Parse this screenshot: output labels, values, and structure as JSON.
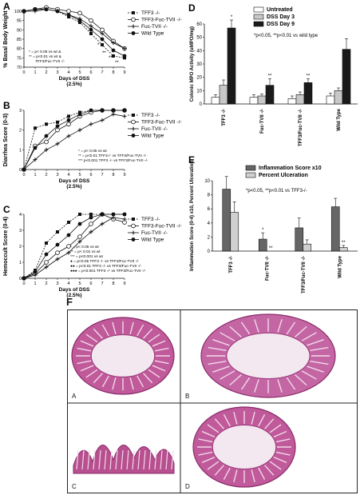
{
  "chart_data": [
    {
      "panel_label": "A",
      "type": "line",
      "xlabel": "Days of DSS",
      "xlabel2": "(2.5%)",
      "ylabel": "% Basal Body Weight",
      "x": [
        0,
        1,
        2,
        3,
        4,
        5,
        6,
        7,
        8,
        9
      ],
      "xlim": [
        0,
        9
      ],
      "ylim": [
        70,
        100
      ],
      "yticks": [
        70,
        75,
        80,
        85,
        90,
        95,
        100
      ],
      "series": [
        {
          "name": "TFF3 -/-",
          "style": "dashed",
          "marker": "square-filled",
          "values": [
            100,
            101,
            101,
            100,
            97,
            94,
            88,
            82,
            76,
            75
          ]
        },
        {
          "name": "TFF3-Fuc-TVII -/-",
          "style": "solid",
          "marker": "circle-open",
          "values": [
            100,
            101,
            102,
            101,
            100,
            99,
            95,
            90,
            84,
            80
          ]
        },
        {
          "name": "Fuc-TVII -/-",
          "style": "solid",
          "marker": "plus",
          "values": [
            100,
            100,
            101,
            100,
            98,
            96,
            92,
            88,
            83,
            80
          ]
        },
        {
          "name": "Wild Type",
          "style": "solid",
          "marker": "circle-filled",
          "values": [
            100,
            101,
            101,
            100,
            98,
            95,
            90,
            85,
            79,
            76
          ]
        }
      ],
      "annotations": [
        "* = p< 0.05 vs wt &",
        "** = p<0.01 vs wt &",
        "TFF3/Fuc-TVII -/-",
        "*",
        "**",
        "**",
        "**"
      ]
    },
    {
      "panel_label": "B",
      "type": "line",
      "xlabel": "Days of DSS",
      "xlabel2": "(2.5%)",
      "ylabel": "Diarrhea Score (0-3)",
      "x": [
        0,
        1,
        2,
        3,
        4,
        5,
        6,
        7,
        8,
        9
      ],
      "xlim": [
        0,
        9
      ],
      "ylim": [
        0,
        3
      ],
      "yticks": [
        0,
        1,
        2,
        3
      ],
      "series": [
        {
          "name": "TFF3 -/-",
          "style": "dashed",
          "marker": "square-filled",
          "values": [
            0,
            2.1,
            2.3,
            2.4,
            2.7,
            2.9,
            3,
            3,
            3,
            3
          ]
        },
        {
          "name": "TFF3-Fuc-TVII -/-",
          "style": "solid",
          "marker": "circle-open",
          "values": [
            0,
            1.2,
            1.4,
            2.0,
            2.3,
            2.7,
            2.9,
            3,
            3,
            3
          ]
        },
        {
          "name": "Fuc-TVII -/-",
          "style": "solid",
          "marker": "plus",
          "values": [
            0,
            0.5,
            1.0,
            1.3,
            1.7,
            2.0,
            2.3,
            2.5,
            2.8,
            2.7
          ]
        },
        {
          "name": "Wild Type",
          "style": "solid",
          "marker": "circle-filled",
          "values": [
            0,
            1.1,
            1.7,
            2.2,
            2.5,
            2.8,
            3,
            3,
            3,
            3
          ]
        }
      ],
      "annotations": [
        "* = p< 0.05 vs wt",
        "** = p<0.01 TFF3-/- vs TFF3/Fuc-TVII -/-",
        "*** p<0.001 TFF3 -/- vs TFF3/Fuc-TVII -/-"
      ]
    },
    {
      "panel_label": "C",
      "type": "line",
      "xlabel": "Days of DSS",
      "xlabel2": "(2.5%)",
      "ylabel": "Hemoccult Score (0-4)",
      "x": [
        0,
        1,
        2,
        3,
        4,
        5,
        6,
        7,
        8,
        9
      ],
      "xlim": [
        0,
        9
      ],
      "ylim": [
        0,
        4
      ],
      "yticks": [
        0,
        1,
        2,
        3,
        4
      ],
      "series": [
        {
          "name": "TFF3 -/-",
          "style": "dashed",
          "marker": "square-filled",
          "values": [
            0,
            0.5,
            2.2,
            2.9,
            3.5,
            4,
            4,
            4,
            4,
            4
          ]
        },
        {
          "name": "TFF3-Fuc-TVII -/-",
          "style": "solid",
          "marker": "circle-open",
          "values": [
            0,
            0.3,
            1.0,
            1.6,
            2.0,
            2.6,
            3.4,
            4,
            3.7,
            3.5
          ]
        },
        {
          "name": "Fuc-TVII -/-",
          "style": "solid",
          "marker": "plus",
          "values": [
            0,
            0.2,
            0.7,
            1.2,
            1.6,
            2.3,
            2.9,
            3.4,
            3.8,
            3.7
          ]
        },
        {
          "name": "Wild Type",
          "style": "solid",
          "marker": "circle-filled",
          "values": [
            0,
            0.4,
            1.5,
            2.1,
            2.7,
            3.4,
            3.8,
            4,
            4,
            4
          ]
        }
      ],
      "annotations": [
        "* = p< 0.05 vs wt",
        "** = p< 0.01 vs wt",
        "*** = p<0.001 vs wt",
        "● = p<0.05 TFF3 -/- vs TFF3/Fuc-TVII -/-",
        "●● = p<0.01 TFF3 -/- vs TFF3/Fuc-TVII -/-",
        "●●● = p<0.001 TFF3 -/- vs TFF3/Fuc-TVII -/-"
      ]
    },
    {
      "panel_label": "D",
      "type": "bar",
      "ylabel": "Colonic MPO Activity (uMPO/mg)",
      "ylim": [
        0,
        60
      ],
      "yticks": [
        0,
        10,
        20,
        30,
        40,
        50,
        60
      ],
      "categories": [
        "TFF3 -/-",
        "Fuc-TVII -/-",
        "TFF3/Fuc-TVII -/-",
        "Wild Type"
      ],
      "series": [
        {
          "name": "Untreated",
          "color": "#ffffff",
          "values": [
            5,
            5,
            4,
            6
          ],
          "errors": [
            2,
            2,
            2,
            2
          ]
        },
        {
          "name": "DSS Day 3",
          "color": "#c8c8c8",
          "values": [
            14,
            6,
            7,
            10
          ],
          "errors": [
            4,
            1.5,
            2,
            2
          ]
        },
        {
          "name": "DSS Day 9",
          "color": "#1a1a1a",
          "values": [
            57,
            14,
            16,
            41
          ],
          "errors": [
            6,
            5,
            3,
            8
          ]
        }
      ],
      "significance": [
        "*",
        "**",
        "**",
        ""
      ],
      "note": "*p<0.05, **p<0.01 vs wild type"
    },
    {
      "panel_label": "E",
      "type": "bar",
      "ylabel": "Inflammation Score (0-4) x10, Percent Ulceration",
      "ylim": [
        0,
        10
      ],
      "yticks": [
        0,
        2,
        4,
        6,
        8,
        10
      ],
      "categories": [
        "TFF3 -/-",
        "Fuc-TVII -/-",
        "TFF3/Fuc-TVII -/-",
        "Wild Type"
      ],
      "series": [
        {
          "name": "Inflammation Score x10",
          "color": "#666666",
          "values": [
            8.8,
            1.7,
            3.3,
            6.3
          ],
          "errors": [
            1.8,
            0.9,
            1.4,
            1.2
          ]
        },
        {
          "name": "Percent Ulceration",
          "color": "#d0d0d0",
          "values": [
            5.5,
            0,
            1.0,
            0.5
          ],
          "errors": [
            1.5,
            0,
            0.6,
            0.3
          ]
        }
      ],
      "significance_inflammation": [
        "",
        "*",
        "",
        ""
      ],
      "significance_ulceration": [
        "",
        "**",
        "",
        "**"
      ],
      "note": "*p<0.05, **p<0.01 vs TFF3-/-"
    }
  ],
  "histology": {
    "panel_label": "F",
    "images": [
      {
        "letter": "A",
        "color": "#c05a9a"
      },
      {
        "letter": "B",
        "color": "#c466a4"
      },
      {
        "letter": "C",
        "color": "#b85090"
      },
      {
        "letter": "D",
        "color": "#c05a9a"
      }
    ]
  }
}
